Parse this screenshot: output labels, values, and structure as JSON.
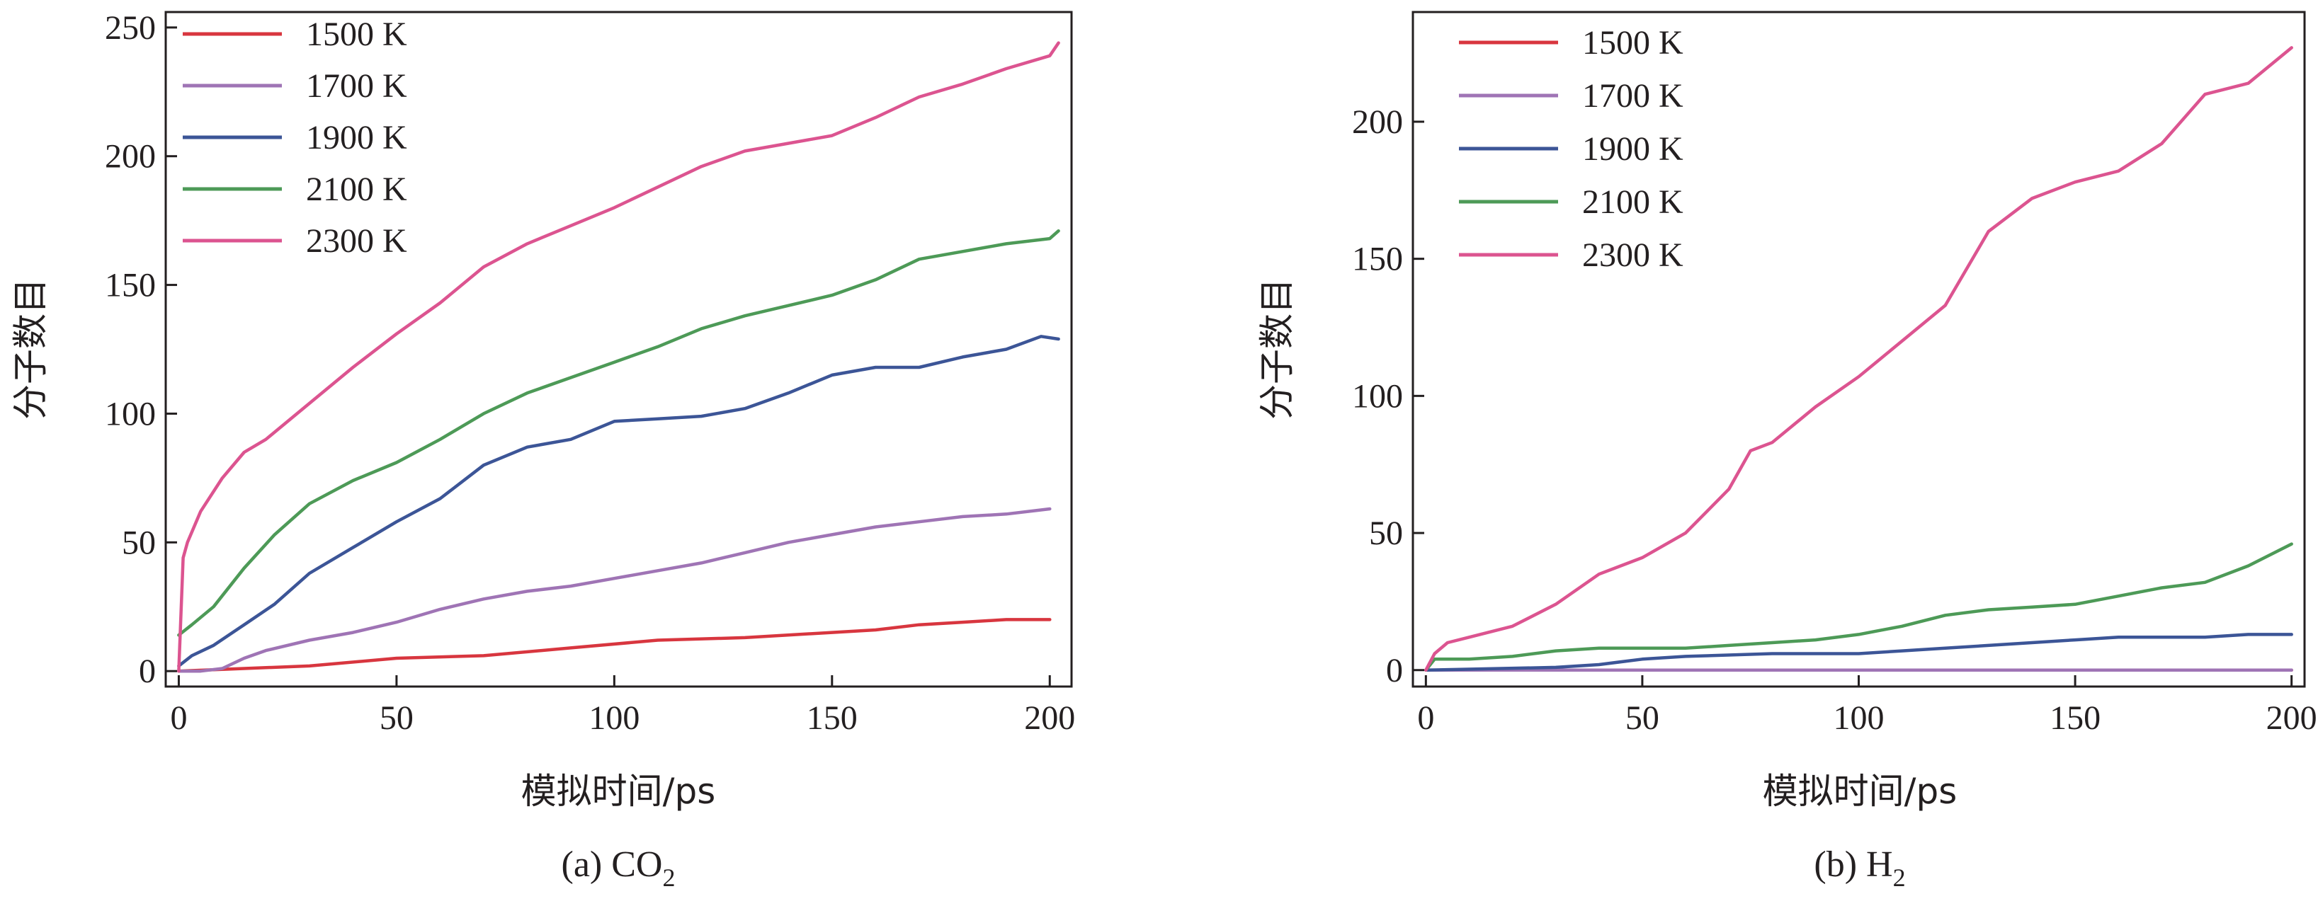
{
  "chart_data": [
    {
      "type": "line",
      "caption": "(a) CO",
      "caption_subscript": "2",
      "xlabel": "模拟时间/ps",
      "ylabel": "分子数目",
      "xlim": [
        -3,
        205
      ],
      "ylim": [
        -6,
        256
      ],
      "xticks": [
        0,
        50,
        100,
        150,
        200
      ],
      "yticks": [
        0,
        50,
        100,
        150,
        200,
        250
      ],
      "legend_position": "top-left",
      "series": [
        {
          "name": "1500 K",
          "color": "#d8363f",
          "x": [
            0,
            15,
            30,
            50,
            70,
            90,
            110,
            130,
            150,
            160,
            170,
            180,
            190,
            200
          ],
          "y": [
            0,
            1,
            2,
            5,
            6,
            9,
            12,
            13,
            15,
            16,
            18,
            19,
            20,
            20
          ]
        },
        {
          "name": "1700 K",
          "color": "#9f74b5",
          "x": [
            0,
            5,
            10,
            15,
            20,
            30,
            40,
            50,
            60,
            70,
            80,
            90,
            100,
            110,
            120,
            130,
            140,
            150,
            160,
            170,
            180,
            190,
            200
          ],
          "y": [
            0,
            0,
            1,
            5,
            8,
            12,
            15,
            19,
            24,
            28,
            31,
            33,
            36,
            39,
            42,
            46,
            50,
            53,
            56,
            58,
            60,
            61,
            63
          ]
        },
        {
          "name": "1900 K",
          "color": "#3c5597",
          "x": [
            0,
            3,
            8,
            15,
            22,
            30,
            40,
            50,
            60,
            70,
            80,
            90,
            100,
            110,
            120,
            130,
            140,
            150,
            160,
            170,
            180,
            190,
            198,
            202
          ],
          "y": [
            2,
            6,
            10,
            18,
            26,
            38,
            48,
            58,
            67,
            80,
            87,
            90,
            97,
            98,
            99,
            102,
            108,
            115,
            118,
            118,
            122,
            125,
            130,
            129
          ]
        },
        {
          "name": "2100 K",
          "color": "#4d9a57",
          "x": [
            0,
            3,
            8,
            15,
            22,
            30,
            40,
            50,
            60,
            70,
            80,
            90,
            100,
            110,
            120,
            130,
            140,
            150,
            160,
            170,
            180,
            190,
            200,
            202
          ],
          "y": [
            14,
            18,
            25,
            40,
            53,
            65,
            74,
            81,
            90,
            100,
            108,
            114,
            120,
            126,
            133,
            138,
            142,
            146,
            152,
            160,
            163,
            166,
            168,
            171
          ]
        },
        {
          "name": "2300 K",
          "color": "#dc5490",
          "x": [
            0,
            1,
            2,
            5,
            10,
            15,
            20,
            30,
            40,
            50,
            60,
            70,
            80,
            90,
            100,
            110,
            120,
            130,
            140,
            150,
            160,
            170,
            180,
            190,
            200,
            202
          ],
          "y": [
            0,
            44,
            50,
            62,
            75,
            85,
            90,
            104,
            118,
            131,
            143,
            157,
            166,
            173,
            180,
            188,
            196,
            202,
            205,
            208,
            215,
            223,
            228,
            234,
            239,
            244
          ]
        }
      ]
    },
    {
      "type": "line",
      "caption": "(b) H",
      "caption_subscript": "2",
      "xlabel": "模拟时间/ps",
      "ylabel": "分子数目",
      "xlim": [
        -3,
        203
      ],
      "ylim": [
        -6,
        240
      ],
      "xticks": [
        0,
        50,
        100,
        150,
        200
      ],
      "yticks": [
        0,
        50,
        100,
        150,
        200
      ],
      "legend_position": "top-left",
      "series": [
        {
          "name": "1500 K",
          "color": "#d8363f",
          "x": [
            0,
            90,
            200
          ],
          "y": [
            0,
            0,
            0
          ]
        },
        {
          "name": "1700 K",
          "color": "#9f74b5",
          "x": [
            0,
            40,
            90,
            200
          ],
          "y": [
            0,
            0,
            0,
            0
          ]
        },
        {
          "name": "1900 K",
          "color": "#3c5597",
          "x": [
            0,
            30,
            40,
            50,
            60,
            80,
            100,
            110,
            120,
            130,
            140,
            150,
            160,
            170,
            180,
            190,
            200
          ],
          "y": [
            0,
            1,
            2,
            4,
            5,
            6,
            6,
            7,
            8,
            9,
            10,
            11,
            12,
            12,
            12,
            13,
            13
          ]
        },
        {
          "name": "2100 K",
          "color": "#4d9a57",
          "x": [
            0,
            2,
            10,
            20,
            30,
            40,
            50,
            60,
            70,
            80,
            90,
            100,
            110,
            120,
            130,
            140,
            150,
            160,
            170,
            180,
            190,
            200
          ],
          "y": [
            0,
            4,
            4,
            5,
            7,
            8,
            8,
            8,
            9,
            10,
            11,
            13,
            16,
            20,
            22,
            23,
            24,
            27,
            30,
            32,
            38,
            46
          ]
        },
        {
          "name": "2300 K",
          "color": "#dc5490",
          "x": [
            0,
            2,
            5,
            10,
            20,
            30,
            40,
            50,
            60,
            70,
            75,
            80,
            90,
            100,
            110,
            120,
            130,
            140,
            150,
            160,
            170,
            180,
            190,
            200
          ],
          "y": [
            0,
            6,
            10,
            12,
            16,
            24,
            35,
            41,
            50,
            66,
            80,
            83,
            96,
            107,
            120,
            133,
            160,
            172,
            178,
            182,
            192,
            210,
            214,
            227
          ]
        }
      ]
    }
  ]
}
